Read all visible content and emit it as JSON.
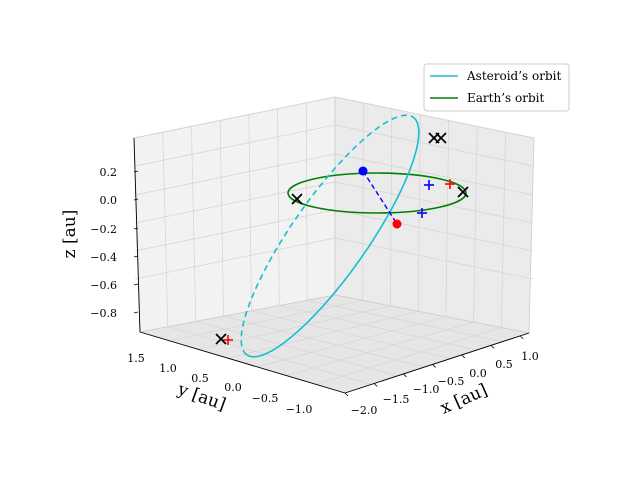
{
  "chart_data": {
    "type": "line3d",
    "axes": {
      "x": {
        "label": "x [au]",
        "ticks": [
          "−2.0",
          "−1.5",
          "−1.0",
          "−0.5",
          "0.0",
          "0.5",
          "1.0"
        ]
      },
      "y": {
        "label": "y [au]",
        "ticks": [
          "1.5",
          "1.0",
          "0.5",
          "0.0",
          "−0.5",
          "−1.0"
        ]
      },
      "z": {
        "label": "z [au]",
        "ticks": [
          "0.2",
          "0.0",
          "−0.2",
          "−0.4",
          "−0.6",
          "−0.8"
        ]
      }
    },
    "legend": {
      "placement": "top-right",
      "entries": [
        {
          "name": "Asteroid’s orbit",
          "color": "#17becf"
        },
        {
          "name": "Earth’s orbit",
          "color": "#008000"
        }
      ]
    },
    "series": [
      {
        "name": "Asteroid’s orbit",
        "color": "#17becf",
        "shape": "ellipse",
        "hidden_part_dashed": true
      },
      {
        "name": "Earth’s orbit",
        "color": "#008000",
        "shape": "ellipse"
      }
    ],
    "markers": [
      {
        "kind": "point",
        "color": "#0000ff",
        "count": 1
      },
      {
        "kind": "point",
        "color": "#ff0000",
        "count": 1
      },
      {
        "kind": "cross-x",
        "color": "#000000",
        "count": 6
      },
      {
        "kind": "plus",
        "color": "#0000ff",
        "count": 2
      },
      {
        "kind": "plus",
        "color": "#ff0000",
        "count": 2
      },
      {
        "kind": "dashed-segment",
        "color": "#0000ff",
        "count": 1
      }
    ],
    "grid": true
  }
}
